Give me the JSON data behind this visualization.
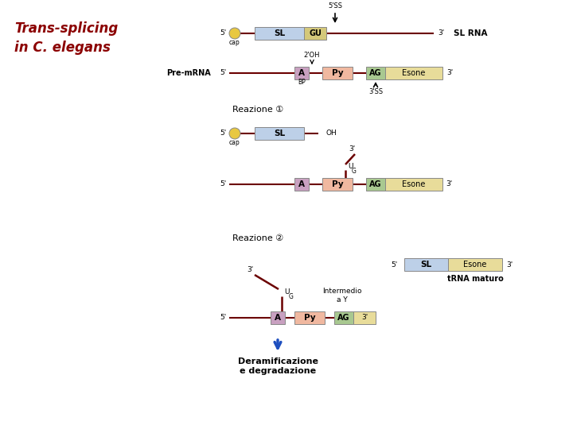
{
  "title": "Trans-splicing\nin C. elegans",
  "title_color": "#8B0000",
  "bg_color": "#FFFFFF",
  "line_color": "#6B0000",
  "colors": {
    "sl_box": "#BDD0E8",
    "gu_box": "#D4C87A",
    "cap_circle": "#E8C840",
    "A_box": "#C8A0C0",
    "Py_box": "#F0B8A0",
    "AG_box": "#A8C890",
    "Esone_box": "#E8DC9A",
    "arrow_blue": "#1E4FBF"
  },
  "notes": {
    "reaction1": "Reazione ①",
    "reaction2": "Reazione ②",
    "sl_rna": "SL RNA",
    "pre_mrna": "Pre-mRNA",
    "trna_maturo": "tRNA maturo",
    "intermedio": "Intermedio\na Y",
    "deramificazione": "Deramificazione\ne degradazione",
    "5ss": "5'SS",
    "3ss": "3'SS",
    "2oh": "2'OH",
    "bp": "BP",
    "cap": "cap"
  }
}
